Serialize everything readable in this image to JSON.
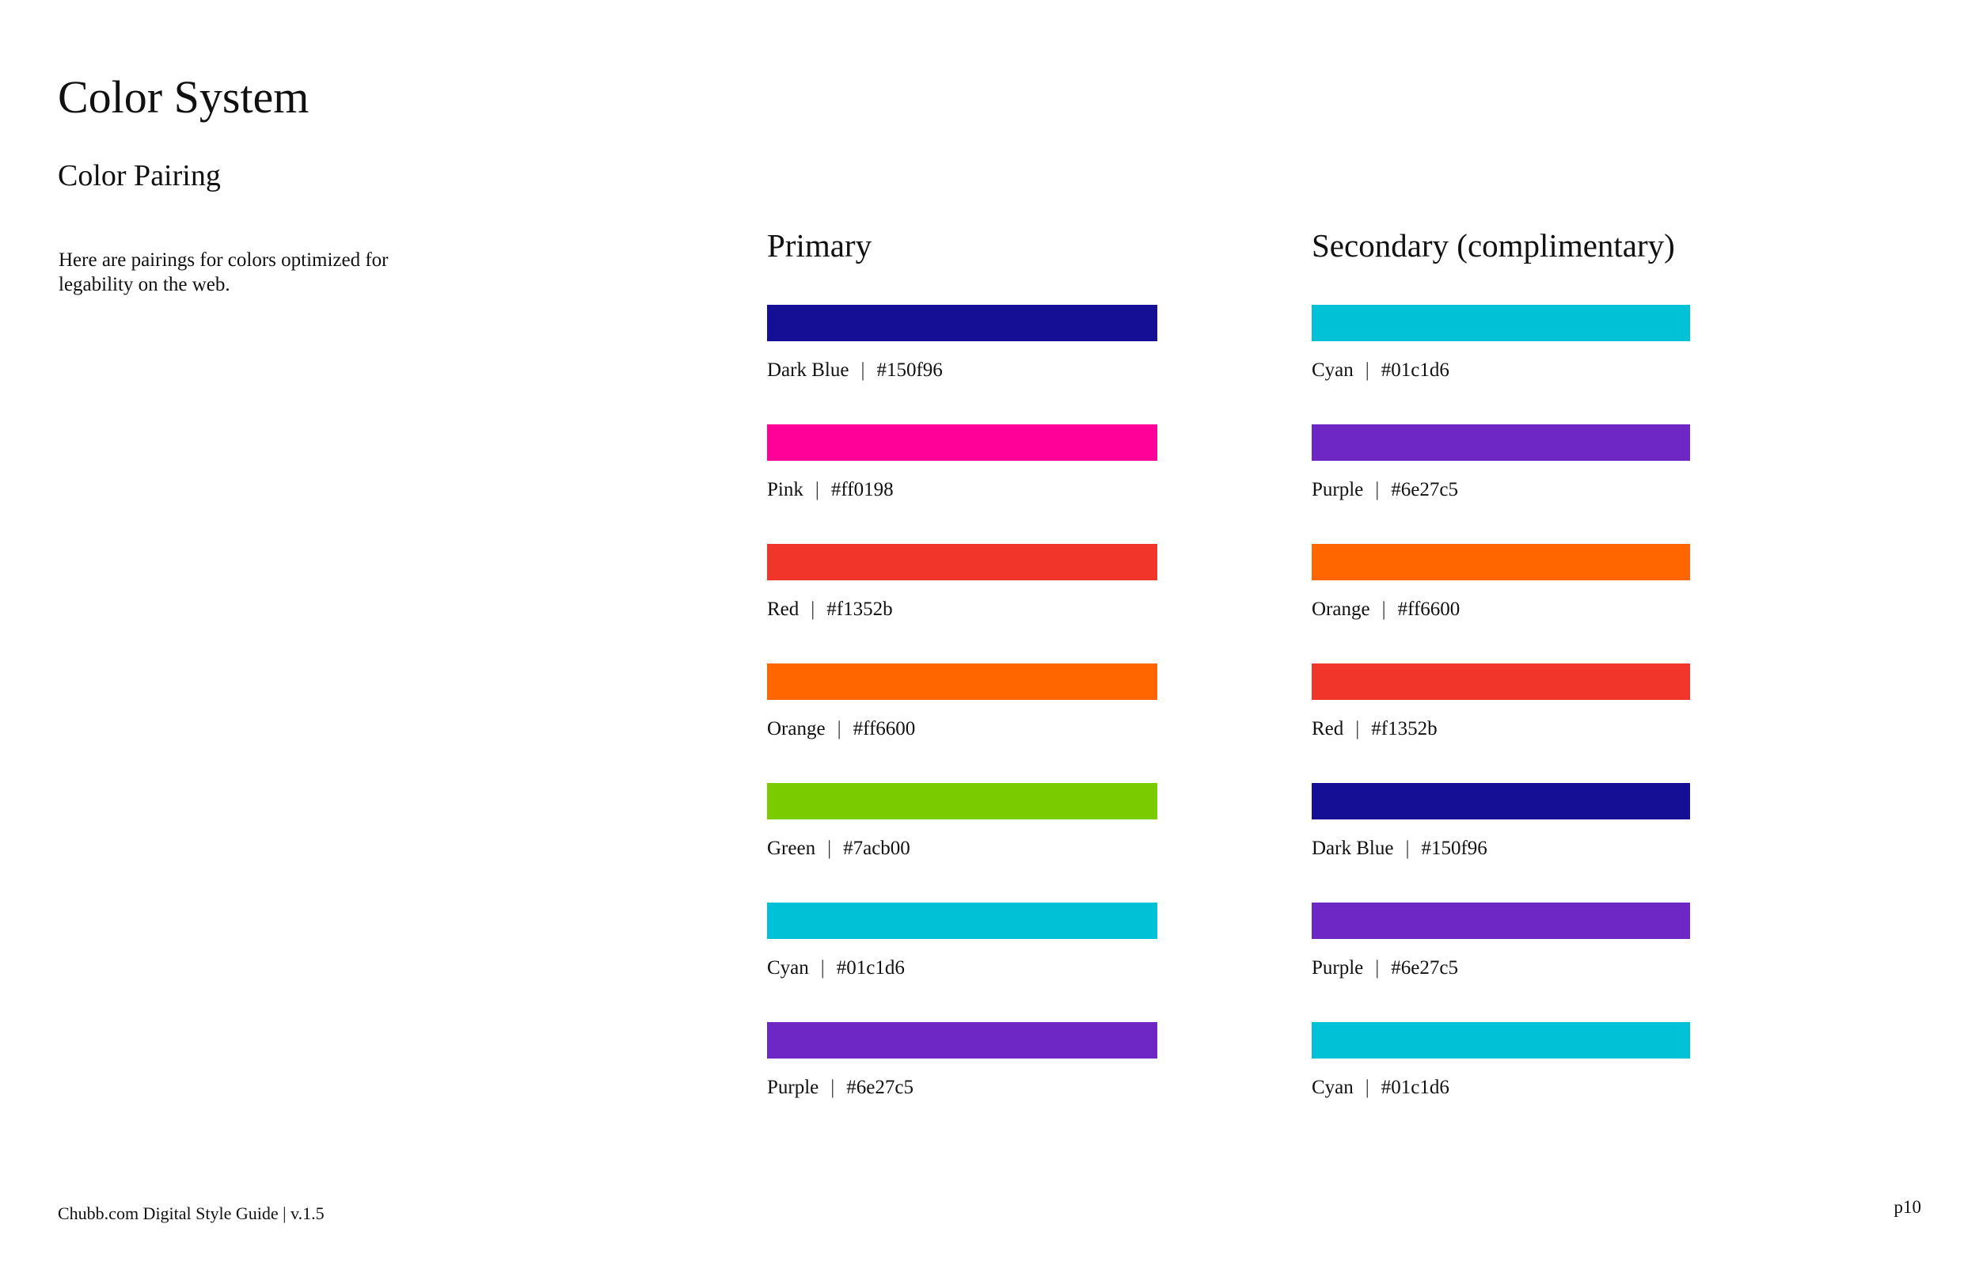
{
  "page": {
    "title": "Color System",
    "subtitle": "Color Pairing",
    "description": "Here are pairings for colors optimized for legability on the web.",
    "footer_left": "Chubb.com Digital Style Guide | v.1.5",
    "page_number": "p10"
  },
  "label_separator": "|",
  "columns": [
    {
      "heading": "Primary",
      "swatches": [
        {
          "name": "Dark Blue",
          "hex": "#150f96"
        },
        {
          "name": "Pink",
          "hex": "#ff0198"
        },
        {
          "name": "Red",
          "hex": "#f1352b"
        },
        {
          "name": "Orange",
          "hex": "#ff6600"
        },
        {
          "name": "Green",
          "hex": "#7acb00"
        },
        {
          "name": "Cyan",
          "hex": "#01c1d6"
        },
        {
          "name": "Purple",
          "hex": "#6e27c5"
        }
      ]
    },
    {
      "heading": "Secondary (complimentary)",
      "swatches": [
        {
          "name": "Cyan",
          "hex": "#01c1d6"
        },
        {
          "name": "Purple",
          "hex": "#6e27c5"
        },
        {
          "name": "Orange",
          "hex": "#ff6600"
        },
        {
          "name": "Red",
          "hex": "#f1352b"
        },
        {
          "name": "Dark Blue",
          "hex": "#150f96"
        },
        {
          "name": "Purple",
          "hex": "#6e27c5"
        },
        {
          "name": "Cyan",
          "hex": "#01c1d6"
        }
      ]
    }
  ]
}
